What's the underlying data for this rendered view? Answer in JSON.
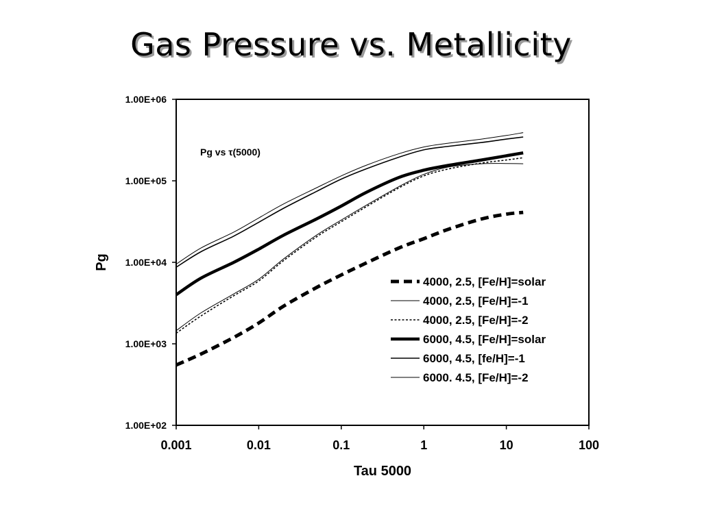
{
  "slide": {
    "title": "Gas Pressure vs. Metallicity"
  },
  "chart_data": {
    "type": "line",
    "xscale": "log",
    "yscale": "log",
    "xlabel": "Tau 5000",
    "ylabel": "Pg",
    "xlim": [
      0.001,
      100
    ],
    "ylim": [
      100,
      1000000
    ],
    "xticks": [
      "0.001",
      "0.01",
      "0.1",
      "1",
      "10",
      "100"
    ],
    "yticks": [
      "1.00E+02",
      "1.00E+03",
      "1.00E+04",
      "1.00E+05",
      "1.00E+06"
    ],
    "annotation": "Pg vs τ(5000)",
    "grid": false,
    "legend_position": "lower-right",
    "series": [
      {
        "name": "4000, 2.5, [Fe/H]=solar",
        "style": "thick-dashed",
        "x": [
          0.001,
          0.002,
          0.005,
          0.01,
          0.02,
          0.05,
          0.1,
          0.2,
          0.5,
          1,
          2,
          5,
          10,
          16
        ],
        "y": [
          550,
          750,
          1200,
          1800,
          2900,
          4900,
          7000,
          9800,
          15000,
          19500,
          25500,
          34000,
          39000,
          41000
        ]
      },
      {
        "name": "4000, 2.5, [Fe/H]=-1",
        "style": "thin-solid",
        "x": [
          0.001,
          0.002,
          0.005,
          0.01,
          0.02,
          0.05,
          0.1,
          0.2,
          0.5,
          1,
          2,
          5,
          10,
          16
        ],
        "y": [
          1450,
          2400,
          4100,
          6200,
          11000,
          21500,
          33000,
          50000,
          85000,
          120000,
          148000,
          162000,
          163000,
          162000
        ]
      },
      {
        "name": "4000, 2.5, [Fe/H]=-2",
        "style": "dotted",
        "x": [
          0.001,
          0.002,
          0.005,
          0.01,
          0.02,
          0.05,
          0.1,
          0.2,
          0.5,
          1,
          2,
          5,
          10,
          16
        ],
        "y": [
          1350,
          2200,
          3900,
          5900,
          10500,
          20500,
          31500,
          48000,
          82000,
          115000,
          140000,
          165000,
          180000,
          192000
        ]
      },
      {
        "name": "6000, 4.5, [Fe/H]=solar",
        "style": "thick-solid",
        "x": [
          0.001,
          0.002,
          0.005,
          0.01,
          0.02,
          0.05,
          0.1,
          0.2,
          0.5,
          1,
          2,
          5,
          10,
          16
        ],
        "y": [
          4000,
          6400,
          10000,
          14500,
          21500,
          34000,
          49000,
          72000,
          110000,
          135000,
          155000,
          180000,
          203000,
          220000
        ]
      },
      {
        "name": "6000, 4.5, [fe/H]=-1",
        "style": "medium-solid",
        "x": [
          0.001,
          0.002,
          0.005,
          0.01,
          0.02,
          0.05,
          0.1,
          0.2,
          0.5,
          1,
          2,
          5,
          10,
          16
        ],
        "y": [
          8700,
          13500,
          21000,
          31000,
          46000,
          74000,
          105000,
          140000,
          195000,
          240000,
          265000,
          295000,
          325000,
          345000
        ]
      },
      {
        "name": "6000. 4.5, [Fe/H]=-2",
        "style": "thin-solid",
        "x": [
          0.001,
          0.002,
          0.005,
          0.01,
          0.02,
          0.05,
          0.1,
          0.2,
          0.5,
          1,
          2,
          5,
          10,
          16
        ],
        "y": [
          9500,
          15000,
          23500,
          35000,
          52000,
          82000,
          115000,
          155000,
          215000,
          260000,
          290000,
          325000,
          360000,
          390000
        ]
      }
    ]
  }
}
